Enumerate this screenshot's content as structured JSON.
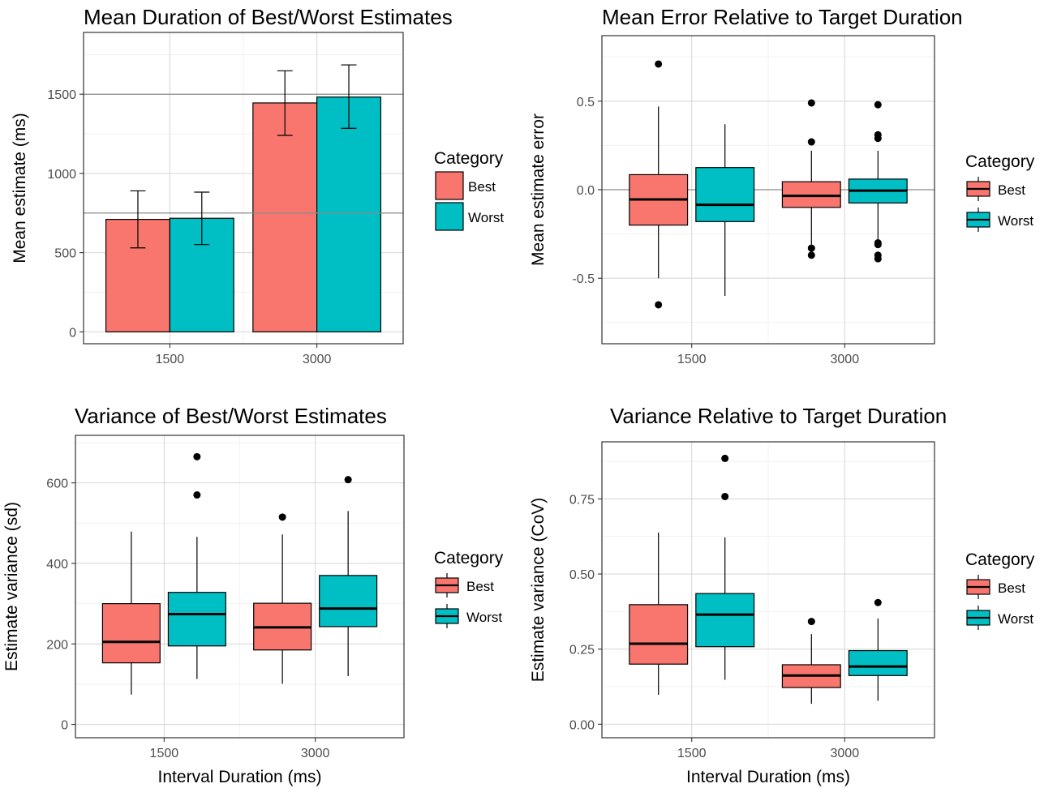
{
  "colors": {
    "best": "#F8766D",
    "worst": "#00BFC4",
    "grid_minor": "#F1F1F1",
    "grid_major": "#D9D9D9",
    "panel_border": "#333333",
    "text": "#000000",
    "axis_text": "#4D4D4D"
  },
  "chart_data": [
    {
      "type": "bar",
      "title": "Mean Duration of Best/Worst Estimates",
      "xlabel": "",
      "ylabel": "Mean estimate (ms)",
      "categories": [
        "1500",
        "3000"
      ],
      "ylim": [
        -75,
        1890
      ],
      "y_ticks": [
        0,
        500,
        1000,
        1500
      ],
      "y_tick_labels": [
        "0",
        "500",
        "1000",
        "1500"
      ],
      "grid": true,
      "reference_lines": [
        750,
        1500
      ],
      "series": [
        {
          "name": "Best",
          "color": "#F8766D",
          "values": [
            710,
            1445
          ],
          "error_low": [
            530,
            1240
          ],
          "error_high": [
            890,
            1648
          ]
        },
        {
          "name": "Worst",
          "color": "#00BFC4",
          "values": [
            717,
            1482
          ],
          "error_low": [
            551,
            1285
          ],
          "error_high": [
            882,
            1685
          ]
        }
      ],
      "legend": {
        "title": "Category",
        "entries": [
          "Best",
          "Worst"
        ],
        "position": "right"
      }
    },
    {
      "type": "box",
      "title": "Mean Error Relative to Target Duration",
      "xlabel": "",
      "ylabel": "Mean estimate error",
      "categories": [
        "1500",
        "3000"
      ],
      "ylim": [
        -0.87,
        0.87
      ],
      "y_ticks": [
        -0.5,
        0,
        0.5
      ],
      "y_tick_labels": [
        "-0.5",
        "0.0",
        "0.5"
      ],
      "grid": true,
      "reference_lines": [
        0
      ],
      "series": [
        {
          "name": "Best",
          "color": "#F8766D",
          "boxes": [
            {
              "q1": -0.2,
              "median": -0.055,
              "q3": 0.085,
              "whisker_low": -0.5,
              "whisker_high": 0.47,
              "outliers": [
                0.71,
                -0.65
              ]
            },
            {
              "q1": -0.1,
              "median": -0.035,
              "q3": 0.045,
              "whisker_low": -0.31,
              "whisker_high": 0.22,
              "outliers": [
                0.49,
                0.27,
                -0.33,
                -0.37
              ]
            }
          ]
        },
        {
          "name": "Worst",
          "color": "#00BFC4",
          "boxes": [
            {
              "q1": -0.18,
              "median": -0.085,
              "q3": 0.125,
              "whisker_low": -0.6,
              "whisker_high": 0.37,
              "outliers": []
            },
            {
              "q1": -0.075,
              "median": -0.005,
              "q3": 0.06,
              "whisker_low": -0.28,
              "whisker_high": 0.22,
              "outliers": [
                0.48,
                0.31,
                0.29,
                -0.3,
                -0.31,
                -0.37,
                -0.39
              ]
            }
          ]
        }
      ],
      "legend": {
        "title": "Category",
        "entries": [
          "Best",
          "Worst"
        ],
        "position": "right"
      }
    },
    {
      "type": "box",
      "title": "Variance of Best/Worst Estimates",
      "xlabel": "Interval Duration (ms)",
      "ylabel": "Estimate variance (sd)",
      "categories": [
        "1500",
        "3000"
      ],
      "ylim": [
        -33,
        718
      ],
      "y_ticks": [
        0,
        200,
        400,
        600
      ],
      "y_tick_labels": [
        "0",
        "200",
        "400",
        "600"
      ],
      "grid": true,
      "reference_lines": [],
      "series": [
        {
          "name": "Best",
          "color": "#F8766D",
          "boxes": [
            {
              "q1": 153,
              "median": 205,
              "q3": 300,
              "whisker_low": 74,
              "whisker_high": 479,
              "outliers": []
            },
            {
              "q1": 185,
              "median": 241,
              "q3": 301,
              "whisker_low": 101,
              "whisker_high": 472,
              "outliers": [
                515
              ]
            }
          ]
        },
        {
          "name": "Worst",
          "color": "#00BFC4",
          "boxes": [
            {
              "q1": 195,
              "median": 274,
              "q3": 328,
              "whisker_low": 113,
              "whisker_high": 466,
              "outliers": [
                665,
                570
              ]
            },
            {
              "q1": 243,
              "median": 288,
              "q3": 370,
              "whisker_low": 120,
              "whisker_high": 530,
              "outliers": [
                608
              ]
            }
          ]
        }
      ],
      "legend": {
        "title": "Category",
        "entries": [
          "Best",
          "Worst"
        ],
        "position": "right"
      }
    },
    {
      "type": "box",
      "title": "Variance Relative to Target Duration",
      "xlabel": "Interval Duration (ms)",
      "ylabel": "Estimate variance (CoV)",
      "categories": [
        "1500",
        "3000"
      ],
      "ylim": [
        -0.045,
        0.94
      ],
      "y_ticks": [
        0,
        0.25,
        0.5,
        0.75
      ],
      "y_tick_labels": [
        "0.00",
        "0.25",
        "0.50",
        "0.75"
      ],
      "grid": true,
      "reference_lines": [],
      "series": [
        {
          "name": "Best",
          "color": "#F8766D",
          "boxes": [
            {
              "q1": 0.2,
              "median": 0.268,
              "q3": 0.398,
              "whisker_low": 0.098,
              "whisker_high": 0.638,
              "outliers": []
            },
            {
              "q1": 0.122,
              "median": 0.162,
              "q3": 0.198,
              "whisker_low": 0.068,
              "whisker_high": 0.3,
              "outliers": [
                0.342
              ]
            }
          ]
        },
        {
          "name": "Worst",
          "color": "#00BFC4",
          "boxes": [
            {
              "q1": 0.258,
              "median": 0.365,
              "q3": 0.435,
              "whisker_low": 0.148,
              "whisker_high": 0.622,
              "outliers": [
                0.885,
                0.758
              ]
            },
            {
              "q1": 0.162,
              "median": 0.192,
              "q3": 0.245,
              "whisker_low": 0.078,
              "whisker_high": 0.352,
              "outliers": [
                0.405
              ]
            }
          ]
        }
      ],
      "legend": {
        "title": "Category",
        "entries": [
          "Best",
          "Worst"
        ],
        "position": "right"
      }
    }
  ]
}
